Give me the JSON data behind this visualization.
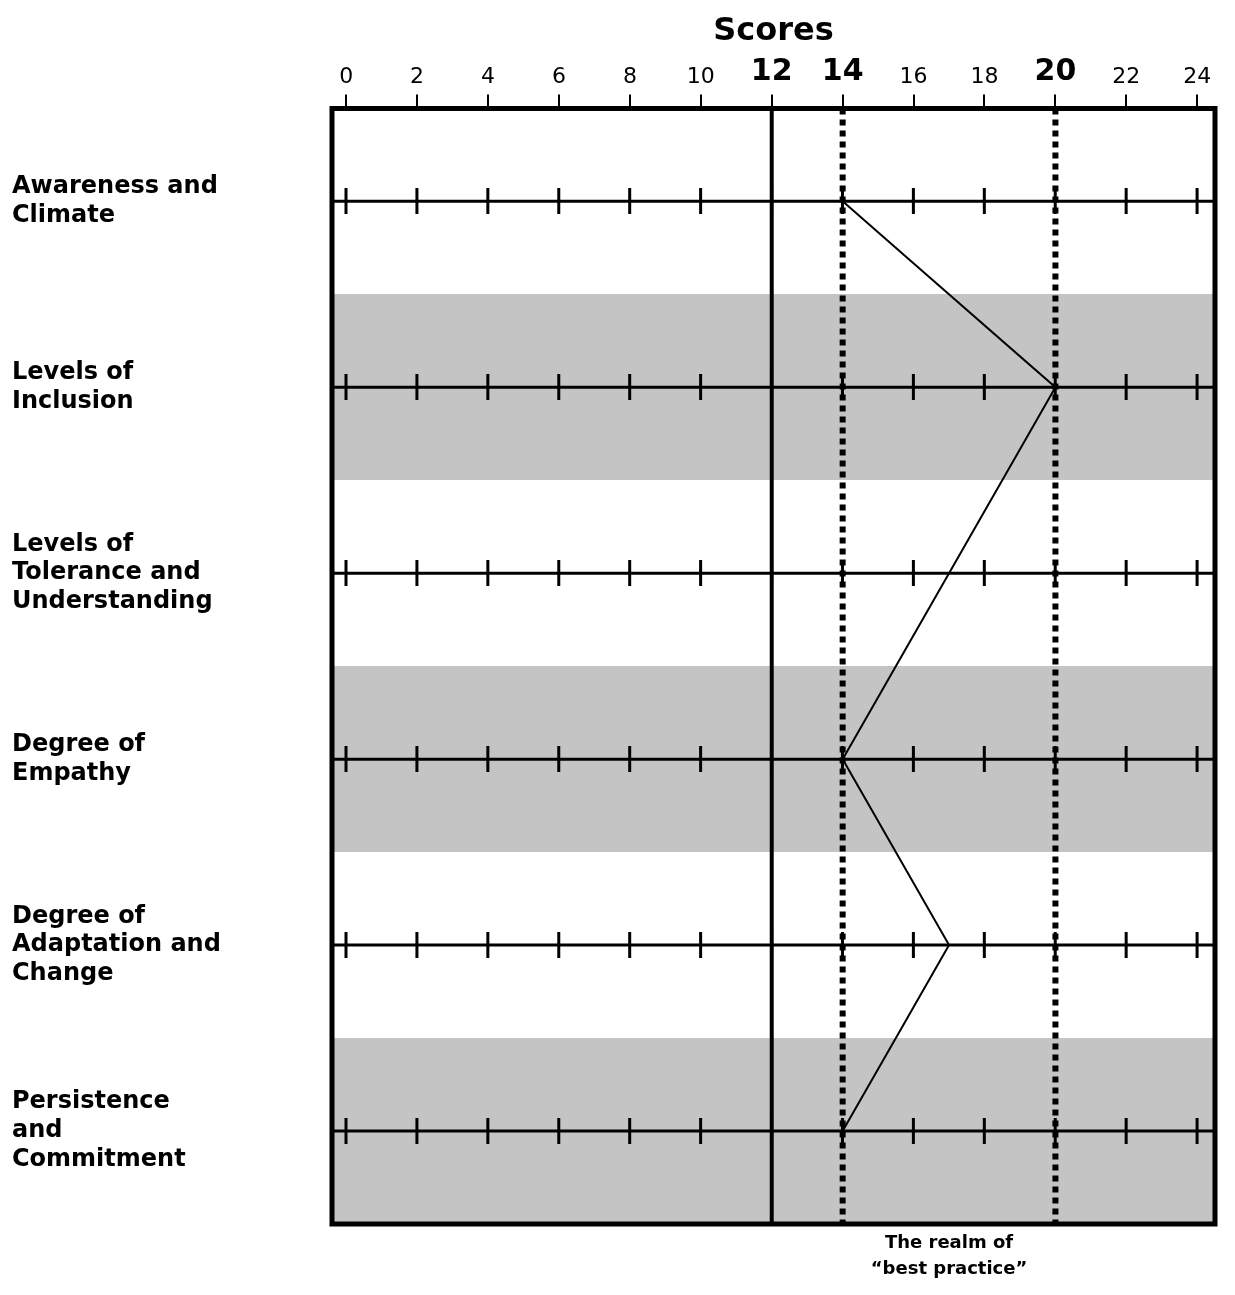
{
  "chart_data": {
    "type": "line",
    "xlabel": "Scores",
    "categories": [
      "Awareness and Climate",
      "Levels of Inclusion",
      "Levels of Tolerance and Understanding",
      "Degree of Empathy",
      "Degree of Adaptation and Change",
      "Persistence and Commitment"
    ],
    "series": [
      {
        "color": "#000000",
        "values": [
          14,
          20,
          17,
          14,
          17,
          14
        ]
      }
    ],
    "xlim": [
      -0.4,
      24.5
    ],
    "xticks": [
      0,
      2,
      4,
      6,
      8,
      10,
      12,
      14,
      16,
      18,
      20,
      22,
      24
    ],
    "grid": "y",
    "marker": "none",
    "orientation": "horizontal",
    "ref_lines": [
      {
        "axis": "x",
        "value": 12,
        "color": "#000000",
        "line_style": "solid"
      },
      {
        "axis": "x",
        "value": 14,
        "color": "#000000",
        "line_style": "dotted"
      },
      {
        "axis": "x",
        "value": 20,
        "color": "#000000",
        "line_style": "dotted"
      }
    ],
    "annotations": [
      "The realm of “best practice”"
    ]
  }
}
